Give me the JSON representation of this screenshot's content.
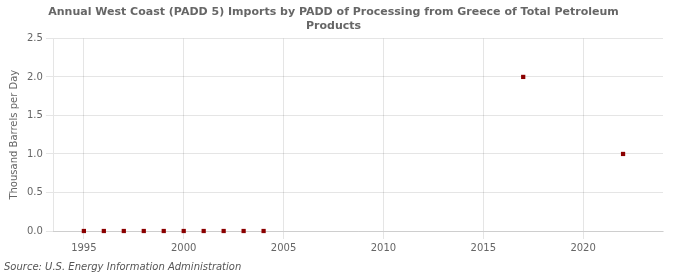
{
  "chart_data": {
    "type": "scatter",
    "title": "Annual West Coast (PADD 5) Imports by PADD of Processing from Greece of Total Petroleum\nProducts",
    "ylabel": "Thousand Barrels per Day",
    "source": "Source: U.S. Energy Information Administration",
    "x": [
      1995,
      1996,
      1997,
      1998,
      1999,
      2000,
      2001,
      2002,
      2003,
      2004,
      2017,
      2022
    ],
    "values": [
      0.0,
      0.0,
      0.0,
      0.0,
      0.0,
      0.0,
      0.0,
      0.0,
      0.0,
      0.0,
      2.0,
      1.0
    ],
    "color": "#8b0000",
    "marker": "square",
    "xlim": [
      1993.5,
      2024
    ],
    "xticks": [
      1995,
      2000,
      2005,
      2010,
      2015,
      2020
    ],
    "ylim": [
      0,
      2.5
    ],
    "yticks": [
      {
        "value": 0.0,
        "label": "0.0"
      },
      0.5,
      {
        "value": 1.0,
        "label": "1.0"
      },
      1.5,
      {
        "value": 2.0,
        "label": "2.0"
      },
      2.5
    ],
    "grid": true
  }
}
